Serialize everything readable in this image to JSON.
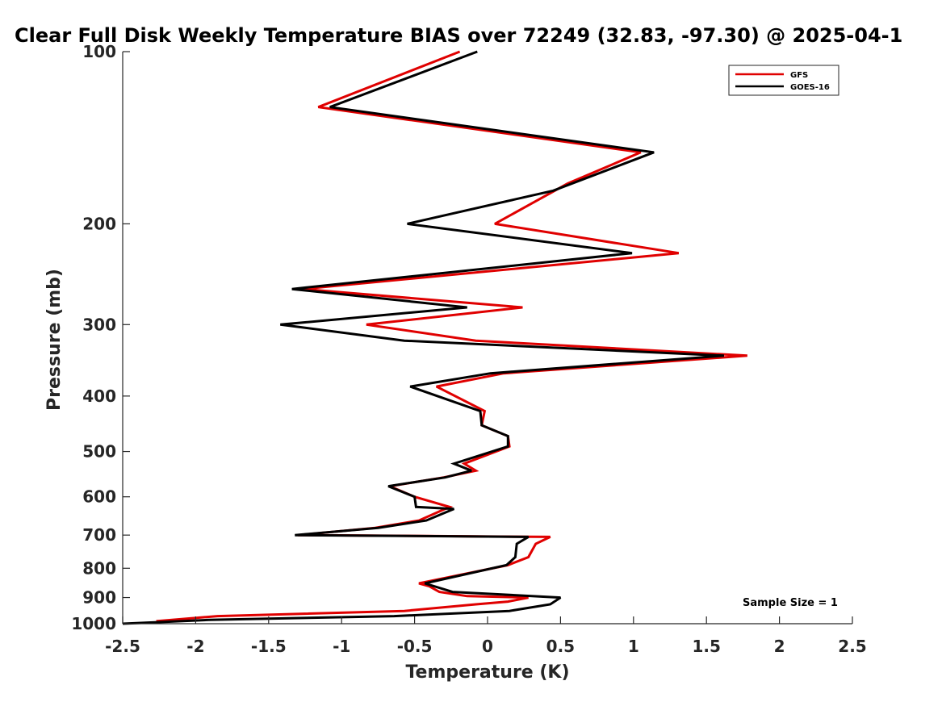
{
  "chart_data": {
    "type": "line",
    "title": "Clear Full Disk Weekly Temperature BIAS over 72249 (32.83, -97.30) @ 2025-04-1",
    "xlabel": "Temperature (K)",
    "ylabel": "Pressure (mb)",
    "xlim": [
      -2.5,
      2.5
    ],
    "ylim": [
      100,
      1000
    ],
    "y_scale": "log",
    "y_reversed": true,
    "xticks": [
      "-2.5",
      "-2",
      "-1.5",
      "-1",
      "-0.5",
      "0",
      "0.5",
      "1",
      "1.5",
      "2",
      "2.5"
    ],
    "xtick_values": [
      -2.5,
      -2,
      -1.5,
      -1,
      -0.5,
      0,
      0.5,
      1,
      1.5,
      2,
      2.5
    ],
    "yticks": [
      "100",
      "200",
      "300",
      "400",
      "500",
      "600",
      "700",
      "800",
      "900",
      "1000"
    ],
    "ytick_values": [
      100,
      200,
      300,
      400,
      500,
      600,
      700,
      800,
      900,
      1000
    ],
    "grid": false,
    "legend_position": "top-right",
    "annotation": "Sample Size = 1",
    "series": [
      {
        "name": "GFS",
        "color": "#e00000",
        "points": [
          [
            -0.19,
            100
          ],
          [
            -1.16,
            125
          ],
          [
            1.05,
            150
          ],
          [
            0.55,
            170
          ],
          [
            0.05,
            200
          ],
          [
            1.31,
            225
          ],
          [
            -1.27,
            260
          ],
          [
            0.24,
            280
          ],
          [
            -0.83,
            300
          ],
          [
            -0.08,
            320
          ],
          [
            1.78,
            340
          ],
          [
            0.11,
            365
          ],
          [
            -0.35,
            385
          ],
          [
            -0.02,
            425
          ],
          [
            -0.04,
            450
          ],
          [
            0.14,
            470
          ],
          [
            0.15,
            490
          ],
          [
            -0.16,
            525
          ],
          [
            -0.08,
            540
          ],
          [
            -0.3,
            555
          ],
          [
            -0.67,
            575
          ],
          [
            -0.5,
            600
          ],
          [
            -0.26,
            625
          ],
          [
            -0.47,
            660
          ],
          [
            -0.77,
            680
          ],
          [
            -1.3,
            700
          ],
          [
            0.43,
            705
          ],
          [
            0.33,
            725
          ],
          [
            0.28,
            765
          ],
          [
            0.14,
            790
          ],
          [
            -0.47,
            850
          ],
          [
            -0.4,
            860
          ],
          [
            -0.33,
            880
          ],
          [
            -0.14,
            895
          ],
          [
            0.28,
            900
          ],
          [
            0.14,
            915
          ],
          [
            -0.08,
            925
          ],
          [
            -0.57,
            950
          ],
          [
            -1.85,
            970
          ],
          [
            -2.27,
            990
          ]
        ]
      },
      {
        "name": "GOES-16",
        "color": "#000000",
        "points": [
          [
            -0.07,
            100
          ],
          [
            -1.08,
            125
          ],
          [
            1.14,
            150
          ],
          [
            0.45,
            175
          ],
          [
            -0.55,
            200
          ],
          [
            0.99,
            225
          ],
          [
            -1.34,
            260
          ],
          [
            -0.14,
            280
          ],
          [
            -1.42,
            300
          ],
          [
            -0.57,
            320
          ],
          [
            1.62,
            340
          ],
          [
            0.02,
            365
          ],
          [
            -0.53,
            385
          ],
          [
            -0.05,
            425
          ],
          [
            -0.04,
            450
          ],
          [
            0.14,
            470
          ],
          [
            0.14,
            490
          ],
          [
            -0.23,
            525
          ],
          [
            -0.11,
            540
          ],
          [
            -0.29,
            555
          ],
          [
            -0.68,
            575
          ],
          [
            -0.5,
            600
          ],
          [
            -0.49,
            625
          ],
          [
            -0.23,
            630
          ],
          [
            -0.42,
            660
          ],
          [
            -0.75,
            680
          ],
          [
            -1.32,
            700
          ],
          [
            0.28,
            705
          ],
          [
            0.2,
            725
          ],
          [
            0.19,
            765
          ],
          [
            0.13,
            790
          ],
          [
            -0.43,
            850
          ],
          [
            -0.24,
            880
          ],
          [
            0.5,
            900
          ],
          [
            0.43,
            925
          ],
          [
            0.15,
            950
          ],
          [
            -0.64,
            970
          ],
          [
            -1.91,
            985
          ],
          [
            -2.5,
            1000
          ]
        ]
      }
    ]
  }
}
